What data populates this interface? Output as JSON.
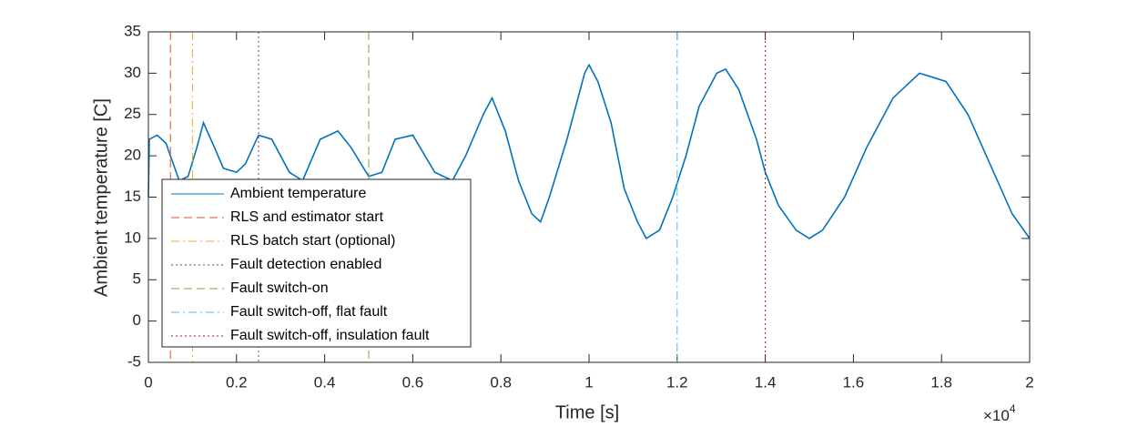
{
  "chart_data": {
    "type": "line",
    "xlabel": "Time [s]",
    "ylabel": "Ambient temperature [C]",
    "x_multiplier": {
      "base": "×10",
      "exponent": "4"
    },
    "xlim": [
      0,
      2
    ],
    "xticks": [
      0,
      0.2,
      0.4,
      0.6,
      0.8,
      1,
      1.2,
      1.4,
      1.6,
      1.8,
      2
    ],
    "ylim": [
      -5,
      35
    ],
    "yticks": [
      -5,
      0,
      5,
      10,
      15,
      20,
      25,
      30,
      35
    ],
    "grid": false,
    "legend": "southwest",
    "series": [
      {
        "name": "Ambient temperature",
        "color": "#0072BD",
        "linestyle": "-",
        "x": [
          0,
          0.002,
          0.02,
          0.04,
          0.05,
          0.07,
          0.09,
          0.11,
          0.125,
          0.15,
          0.17,
          0.2,
          0.22,
          0.25,
          0.28,
          0.32,
          0.35,
          0.39,
          0.43,
          0.46,
          0.5,
          0.53,
          0.56,
          0.6,
          0.65,
          0.69,
          0.72,
          0.76,
          0.78,
          0.81,
          0.84,
          0.87,
          0.89,
          0.91,
          0.95,
          0.99,
          1.0,
          1.02,
          1.05,
          1.08,
          1.11,
          1.13,
          1.16,
          1.19,
          1.22,
          1.25,
          1.29,
          1.31,
          1.34,
          1.38,
          1.4,
          1.43,
          1.47,
          1.5,
          1.53,
          1.58,
          1.63,
          1.69,
          1.75,
          1.81,
          1.86,
          1.91,
          1.96,
          2.0
        ],
        "values": [
          15,
          22,
          22.5,
          21.5,
          20,
          17,
          17.5,
          21,
          24,
          21,
          18.5,
          18,
          19,
          22.5,
          22,
          18,
          17,
          22,
          23,
          21,
          17.5,
          18,
          22,
          22.5,
          18,
          17,
          20,
          25,
          27,
          23,
          17,
          13,
          12,
          15,
          22,
          30,
          31,
          29,
          24,
          16,
          12,
          10,
          11,
          15,
          20,
          26,
          30,
          30.5,
          28,
          22,
          18,
          14,
          11,
          10,
          11,
          15,
          21,
          27,
          30,
          29,
          25,
          19,
          13,
          10
        ]
      },
      {
        "name": "RLS and estimator start",
        "color": "#D95319",
        "linestyle": "--",
        "x": 0.05
      },
      {
        "name": "RLS batch start (optional)",
        "color": "#EDB120",
        "linestyle": "-.",
        "x": 0.1
      },
      {
        "name": "Fault detection enabled",
        "color": "#7E2F8E",
        "linestyle": ":",
        "x": 0.25
      },
      {
        "name": "Fault switch-on",
        "color": "#77AC30",
        "linestyle": "--",
        "x": 0.5
      },
      {
        "name": "Fault switch-off, flat fault",
        "color": "#4DBEEE",
        "linestyle": "-.",
        "x": 1.2
      },
      {
        "name": "Fault switch-off, insulation fault",
        "color": "#A2142F",
        "linestyle": ":",
        "x": 1.4
      }
    ]
  }
}
